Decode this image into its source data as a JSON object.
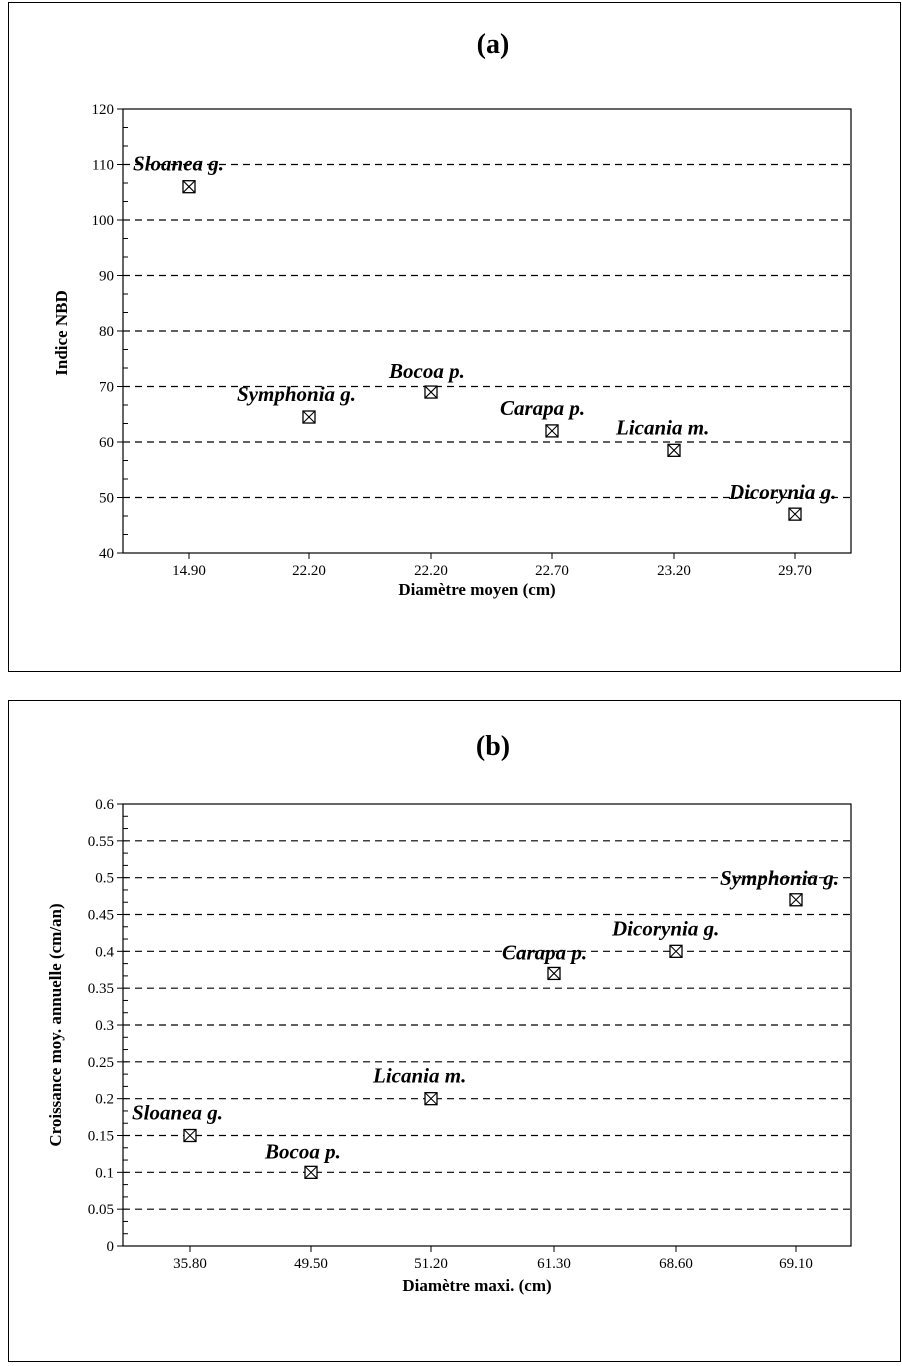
{
  "chart_data": [
    {
      "type": "scatter",
      "title": "(a)",
      "xlabel": "Diamètre moyen (cm)",
      "ylabel": "Indice NBD",
      "ylim": [
        40,
        120
      ],
      "yticks": [
        "40",
        "50",
        "60",
        "70",
        "80",
        "90",
        "100",
        "110",
        "120"
      ],
      "categories": [
        "14.90",
        "22.20",
        "22.20",
        "22.70",
        "23.20",
        "29.70"
      ],
      "points": [
        {
          "label": "Sloanea g.",
          "y": 106
        },
        {
          "label": "Symphonia g.",
          "y": 64.5
        },
        {
          "label": "Bocoa p.",
          "y": 69
        },
        {
          "label": "Carapa p.",
          "y": 62
        },
        {
          "label": "Licania m.",
          "y": 58.5
        },
        {
          "label": "Dicorynia g.",
          "y": 47
        }
      ],
      "grid": "horizontal-dashed"
    },
    {
      "type": "scatter",
      "title": "(b)",
      "xlabel": "Diamètre maxi. (cm)",
      "ylabel": "Croissance moy. annuelle (cm/an)",
      "ylim": [
        0,
        0.6
      ],
      "yticks": [
        "0",
        "0.05",
        "0.1",
        "0.15",
        "0.2",
        "0.25",
        "0.3",
        "0.35",
        "0.4",
        "0.45",
        "0.5",
        "0.55",
        "0.6"
      ],
      "categories": [
        "35.80",
        "49.50",
        "51.20",
        "61.30",
        "68.60",
        "69.10"
      ],
      "points": [
        {
          "label": "Sloanea g.",
          "y": 0.15
        },
        {
          "label": "Bocoa p.",
          "y": 0.1
        },
        {
          "label": "Licania m.",
          "y": 0.2
        },
        {
          "label": "Carapa p.",
          "y": 0.37
        },
        {
          "label": "Dicorynia g.",
          "y": 0.4
        },
        {
          "label": "Symphonia g.",
          "y": 0.47
        }
      ],
      "grid": "horizontal-dashed"
    }
  ]
}
